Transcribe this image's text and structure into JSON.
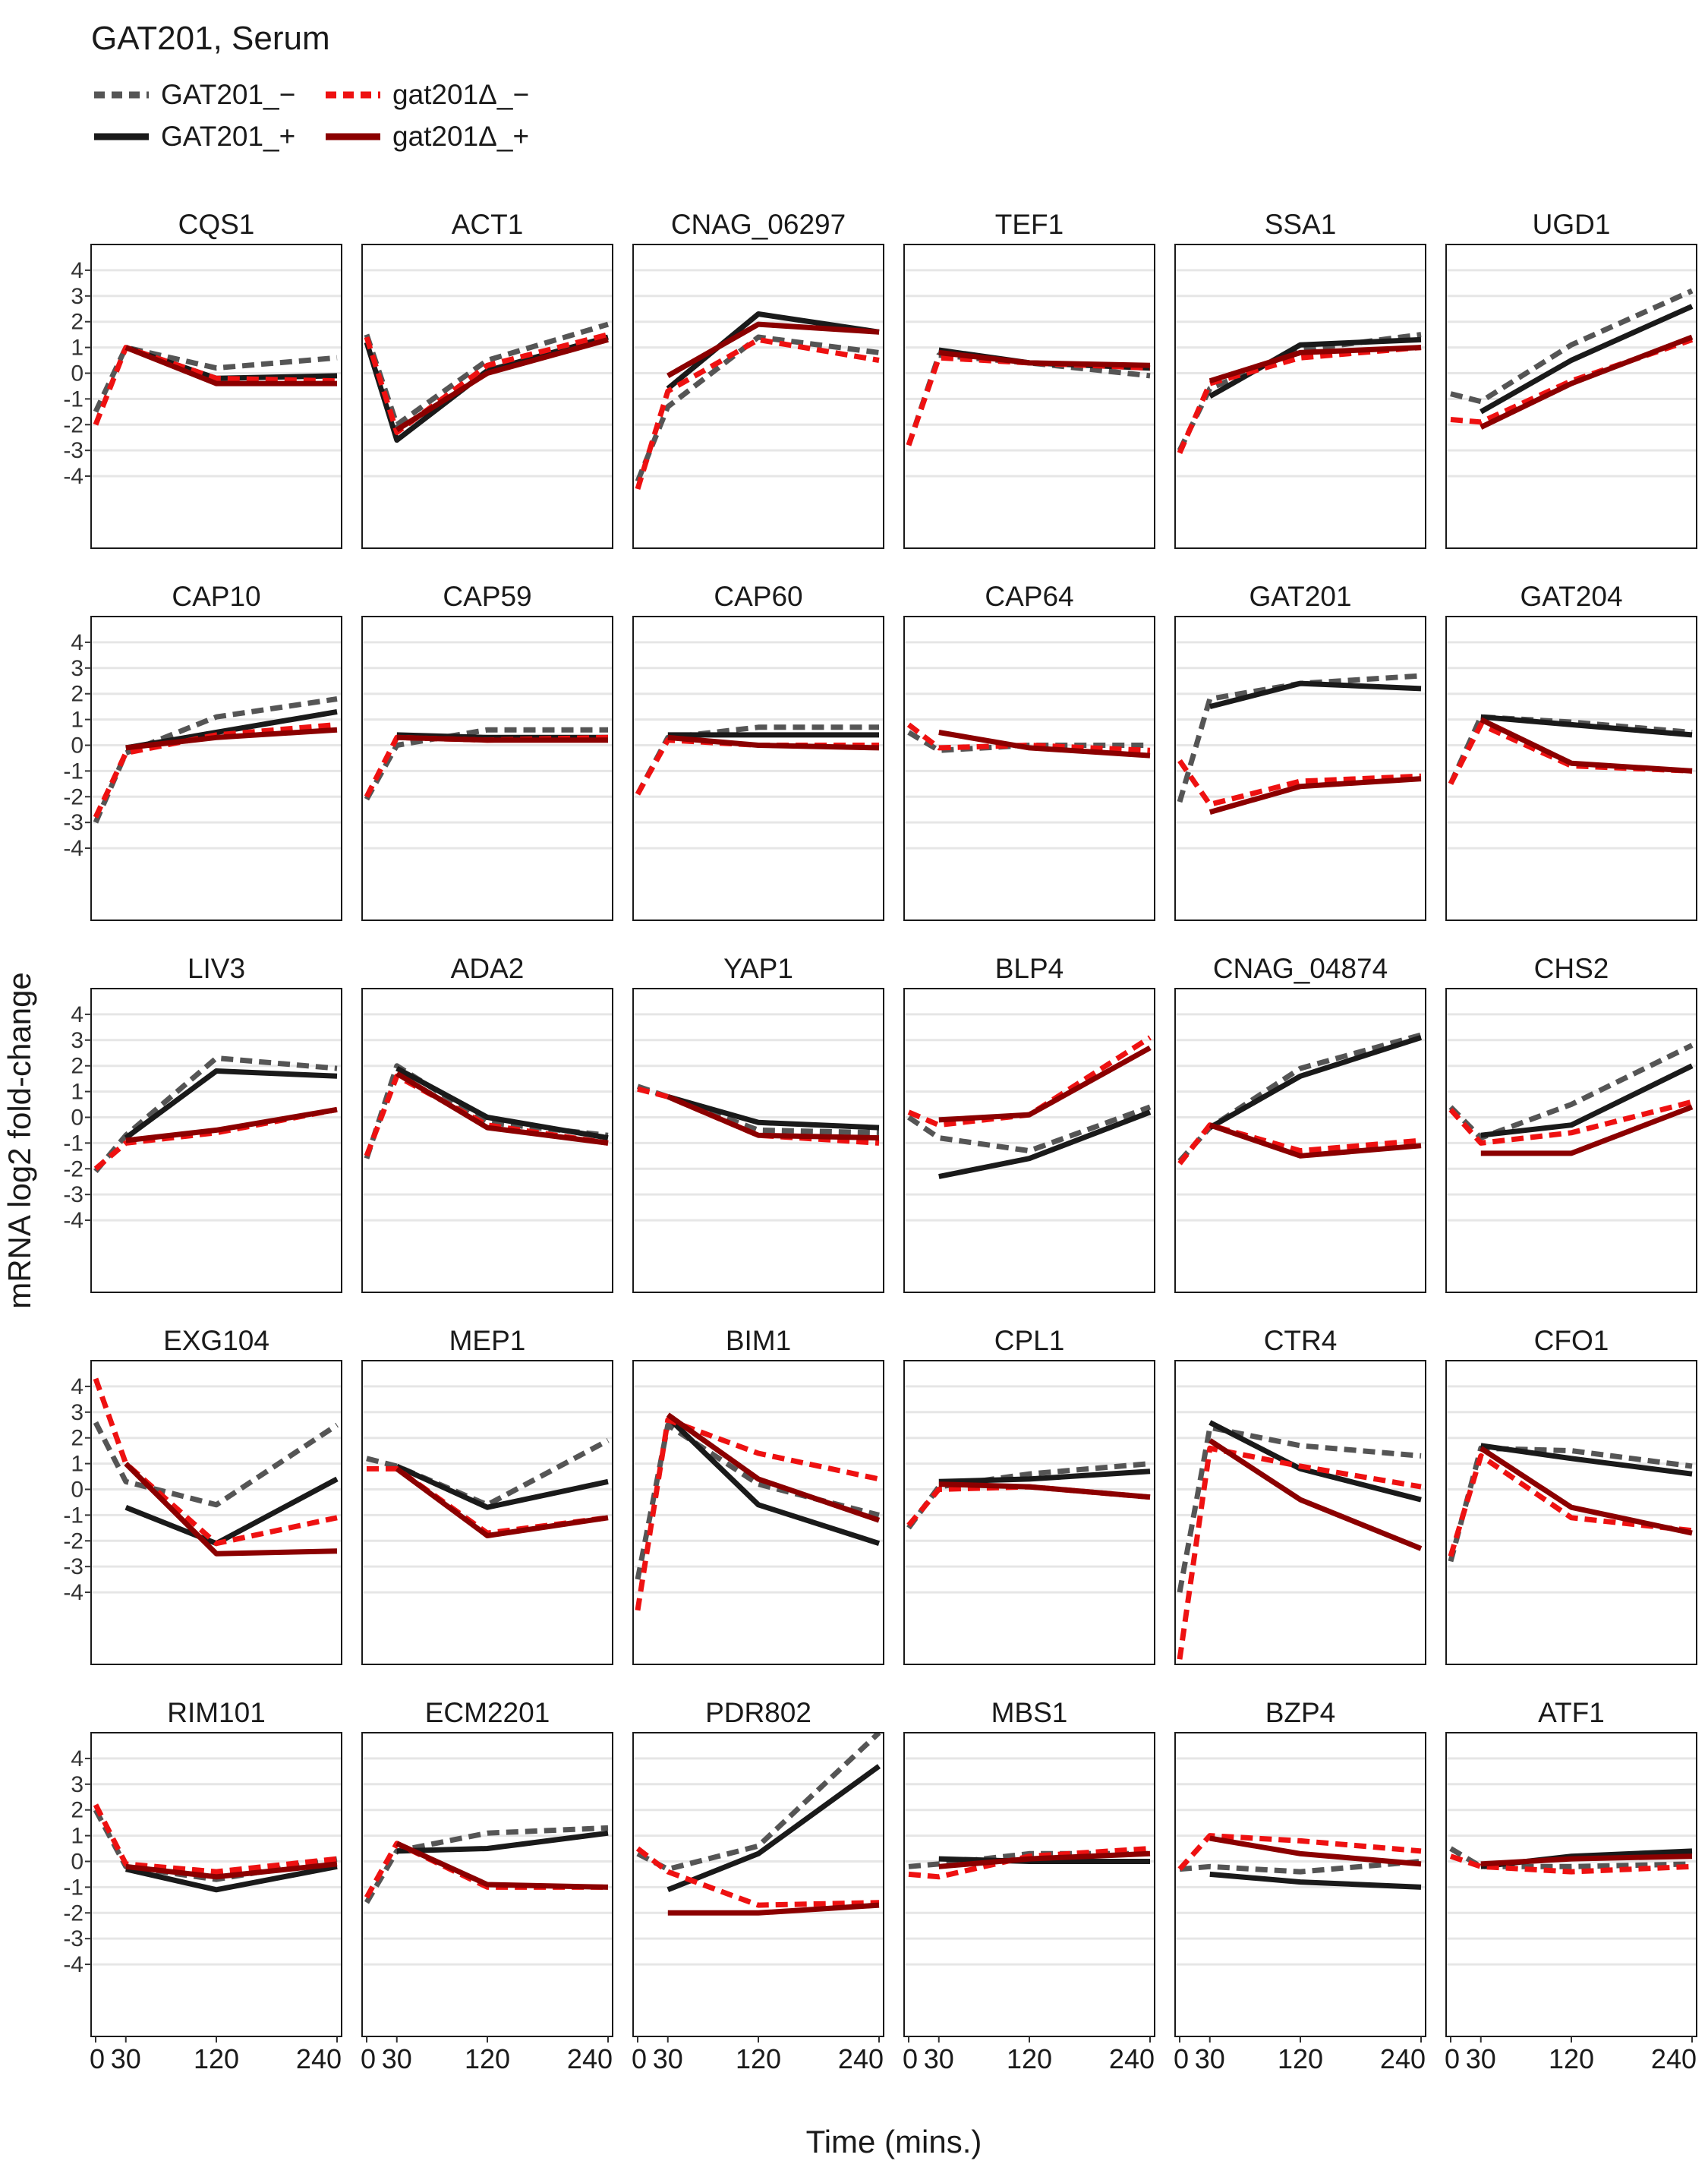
{
  "chart_data": {
    "type": "line",
    "title": "GAT201, Serum",
    "xlabel": "Time (mins.)",
    "ylabel": "mRNA log2 fold-change",
    "x": [
      0,
      30,
      120,
      240
    ],
    "x_ticks": [
      "0",
      "30",
      "120",
      "240"
    ],
    "y_ticks": [
      4,
      3,
      2,
      1,
      0,
      -1,
      -2,
      -3,
      -4
    ],
    "ylim": [
      -6.8,
      5.0
    ],
    "grid": "horizontal",
    "legend_position": "top-left",
    "legend": [
      {
        "key": "wt_minus",
        "label": "GAT201_−",
        "color": "#555555",
        "dash": true
      },
      {
        "key": "wt_plus",
        "label": "GAT201_+",
        "color": "#1a1a1a",
        "dash": false
      },
      {
        "key": "ko_minus",
        "label": "gat201Δ_−",
        "color": "#ee1111",
        "dash": true
      },
      {
        "key": "ko_plus",
        "label": "gat201Δ_+",
        "color": "#8b0000",
        "dash": false
      }
    ],
    "panels": [
      {
        "name": "CQS1",
        "series": {
          "wt_minus": [
            -1.5,
            1.0,
            0.2,
            0.6
          ],
          "wt_plus": [
            null,
            1.0,
            -0.2,
            -0.1
          ],
          "ko_minus": [
            -2.0,
            1.0,
            -0.2,
            -0.3
          ],
          "ko_plus": [
            null,
            1.0,
            -0.4,
            -0.4
          ]
        }
      },
      {
        "name": "ACT1",
        "series": {
          "wt_minus": [
            1.5,
            -2.0,
            0.5,
            1.9
          ],
          "wt_plus": [
            1.2,
            -2.6,
            0.1,
            1.4
          ],
          "ko_minus": [
            1.4,
            -2.3,
            0.3,
            1.5
          ],
          "ko_plus": [
            null,
            -2.2,
            0.0,
            1.3
          ]
        }
      },
      {
        "name": "CNAG_06297",
        "series": {
          "wt_minus": [
            -4.2,
            -1.3,
            1.4,
            0.8
          ],
          "wt_plus": [
            null,
            -0.6,
            2.3,
            1.6
          ],
          "ko_minus": [
            -4.5,
            -0.7,
            1.3,
            0.5
          ],
          "ko_plus": [
            null,
            -0.1,
            1.9,
            1.6
          ]
        }
      },
      {
        "name": "TEF1",
        "series": {
          "wt_minus": [
            -2.8,
            0.7,
            0.4,
            -0.1
          ],
          "wt_plus": [
            null,
            0.9,
            0.4,
            0.2
          ],
          "ko_minus": [
            -2.8,
            0.6,
            0.4,
            0.2
          ],
          "ko_plus": [
            null,
            0.8,
            0.4,
            0.3
          ]
        }
      },
      {
        "name": "SSA1",
        "series": {
          "wt_minus": [
            -3.0,
            -0.6,
            0.9,
            1.5
          ],
          "wt_plus": [
            null,
            -0.9,
            1.1,
            1.3
          ],
          "ko_minus": [
            -3.1,
            -0.4,
            0.6,
            1.0
          ],
          "ko_plus": [
            null,
            -0.3,
            0.8,
            1.0
          ]
        }
      },
      {
        "name": "UGD1",
        "series": {
          "wt_minus": [
            -0.8,
            -1.1,
            1.1,
            3.2
          ],
          "wt_plus": [
            null,
            -1.5,
            0.5,
            2.6
          ],
          "ko_minus": [
            -1.8,
            -1.9,
            -0.3,
            1.3
          ],
          "ko_plus": [
            null,
            -2.1,
            -0.4,
            1.4
          ]
        }
      },
      {
        "name": "CAP10",
        "series": {
          "wt_minus": [
            -3.0,
            -0.3,
            1.1,
            1.8
          ],
          "wt_plus": [
            null,
            -0.1,
            0.5,
            1.3
          ],
          "ko_minus": [
            -2.8,
            -0.3,
            0.4,
            0.8
          ],
          "ko_plus": [
            null,
            -0.1,
            0.3,
            0.6
          ]
        }
      },
      {
        "name": "CAP59",
        "series": {
          "wt_minus": [
            -2.1,
            0.0,
            0.6,
            0.6
          ],
          "wt_plus": [
            null,
            0.4,
            0.3,
            0.3
          ],
          "ko_minus": [
            -2.0,
            0.3,
            0.2,
            0.3
          ],
          "ko_plus": [
            null,
            0.3,
            0.2,
            0.2
          ]
        }
      },
      {
        "name": "CAP60",
        "series": {
          "wt_minus": [
            -1.9,
            0.3,
            0.7,
            0.7
          ],
          "wt_plus": [
            null,
            0.4,
            0.4,
            0.4
          ],
          "ko_minus": [
            -1.9,
            0.2,
            0.0,
            0.0
          ],
          "ko_plus": [
            null,
            0.3,
            0.0,
            -0.1
          ]
        }
      },
      {
        "name": "CAP64",
        "series": {
          "wt_minus": [
            0.5,
            -0.2,
            0.0,
            0.0
          ],
          "wt_plus": [
            null,
            null,
            null,
            null
          ],
          "ko_minus": [
            0.8,
            -0.1,
            0.0,
            -0.2
          ],
          "ko_plus": [
            null,
            0.5,
            -0.1,
            -0.4
          ]
        }
      },
      {
        "name": "GAT201",
        "series": {
          "wt_minus": [
            -2.2,
            1.8,
            2.4,
            2.7
          ],
          "wt_plus": [
            null,
            1.5,
            2.4,
            2.2
          ],
          "ko_minus": [
            -0.6,
            -2.3,
            -1.4,
            -1.2
          ],
          "ko_plus": [
            null,
            -2.6,
            -1.6,
            -1.3
          ]
        }
      },
      {
        "name": "GAT204",
        "series": {
          "wt_minus": [
            -1.5,
            1.1,
            0.9,
            0.5
          ],
          "wt_plus": [
            null,
            1.1,
            0.8,
            0.4
          ],
          "ko_minus": [
            -1.5,
            0.8,
            -0.8,
            -1.0
          ],
          "ko_plus": [
            null,
            1.0,
            -0.7,
            -1.0
          ]
        }
      },
      {
        "name": "LIV3",
        "series": {
          "wt_minus": [
            -2.1,
            -0.7,
            2.3,
            1.9
          ],
          "wt_plus": [
            null,
            -0.8,
            1.8,
            1.6
          ],
          "ko_minus": [
            -2.0,
            -1.0,
            -0.6,
            0.3
          ],
          "ko_plus": [
            null,
            -0.9,
            -0.5,
            0.3
          ]
        }
      },
      {
        "name": "ADA2",
        "series": {
          "wt_minus": [
            -1.6,
            2.0,
            -0.2,
            -0.7
          ],
          "wt_plus": [
            null,
            1.9,
            0.0,
            -0.8
          ],
          "ko_minus": [
            -1.5,
            1.6,
            -0.3,
            -1.0
          ],
          "ko_plus": [
            null,
            1.7,
            -0.4,
            -1.0
          ]
        }
      },
      {
        "name": "YAP1",
        "series": {
          "wt_minus": [
            1.2,
            0.8,
            -0.5,
            -0.6
          ],
          "wt_plus": [
            null,
            0.8,
            -0.2,
            -0.4
          ],
          "ko_minus": [
            1.1,
            0.8,
            -0.7,
            -1.0
          ],
          "ko_plus": [
            null,
            0.8,
            -0.7,
            -0.8
          ]
        }
      },
      {
        "name": "BLP4",
        "series": {
          "wt_minus": [
            0.0,
            -0.8,
            -1.3,
            0.4
          ],
          "wt_plus": [
            null,
            -2.3,
            -1.6,
            0.2
          ],
          "ko_minus": [
            0.2,
            -0.3,
            0.1,
            3.1
          ],
          "ko_plus": [
            null,
            -0.1,
            0.1,
            2.7
          ]
        }
      },
      {
        "name": "CNAG_04874",
        "series": {
          "wt_minus": [
            -1.7,
            -0.4,
            1.9,
            3.2
          ],
          "wt_plus": [
            null,
            -0.4,
            1.6,
            3.1
          ],
          "ko_minus": [
            -1.8,
            -0.3,
            -1.3,
            -0.9
          ],
          "ko_plus": [
            null,
            -0.3,
            -1.5,
            -1.1
          ]
        }
      },
      {
        "name": "CHS2",
        "series": {
          "wt_minus": [
            0.4,
            -0.8,
            0.5,
            2.8
          ],
          "wt_plus": [
            null,
            -0.7,
            -0.3,
            2.0
          ],
          "ko_minus": [
            0.3,
            -1.0,
            -0.6,
            0.6
          ],
          "ko_plus": [
            null,
            -1.4,
            -1.4,
            0.4
          ]
        }
      },
      {
        "name": "EXG104",
        "series": {
          "wt_minus": [
            2.6,
            0.3,
            -0.6,
            2.5
          ],
          "wt_plus": [
            null,
            -0.7,
            -2.1,
            0.4
          ],
          "ko_minus": [
            4.3,
            1.0,
            -2.1,
            -1.1
          ],
          "ko_plus": [
            null,
            1.0,
            -2.5,
            -2.4
          ]
        }
      },
      {
        "name": "MEP1",
        "series": {
          "wt_minus": [
            1.2,
            0.9,
            -0.6,
            1.9
          ],
          "wt_plus": [
            null,
            0.9,
            -0.7,
            0.3
          ],
          "ko_minus": [
            0.8,
            0.8,
            -1.7,
            -1.1
          ],
          "ko_plus": [
            null,
            0.8,
            -1.8,
            -1.1
          ]
        }
      },
      {
        "name": "BIM1",
        "series": {
          "wt_minus": [
            -3.5,
            2.5,
            0.2,
            -1.0
          ],
          "wt_plus": [
            null,
            2.8,
            -0.6,
            -2.1
          ],
          "ko_minus": [
            -4.7,
            2.7,
            1.4,
            0.4
          ],
          "ko_plus": [
            null,
            2.9,
            0.4,
            -1.2
          ]
        }
      },
      {
        "name": "CPL1",
        "series": {
          "wt_minus": [
            -1.5,
            0.1,
            0.6,
            1.0
          ],
          "wt_plus": [
            null,
            0.3,
            0.4,
            0.7
          ],
          "ko_minus": [
            -1.4,
            0.0,
            0.1,
            -0.3
          ],
          "ko_plus": [
            null,
            0.2,
            0.1,
            -0.3
          ]
        }
      },
      {
        "name": "CTR4",
        "series": {
          "wt_minus": [
            -4.0,
            2.4,
            1.7,
            1.3
          ],
          "wt_plus": [
            null,
            2.6,
            0.8,
            -0.4
          ],
          "ko_minus": [
            -6.6,
            1.6,
            0.9,
            0.1
          ],
          "ko_plus": [
            null,
            1.9,
            -0.4,
            -2.3
          ]
        }
      },
      {
        "name": "CFO1",
        "series": {
          "wt_minus": [
            -2.8,
            1.6,
            1.5,
            0.9
          ],
          "wt_plus": [
            null,
            1.7,
            1.2,
            0.6
          ],
          "ko_minus": [
            -2.6,
            1.3,
            -1.1,
            -1.6
          ],
          "ko_plus": [
            null,
            1.6,
            -0.7,
            -1.7
          ]
        }
      },
      {
        "name": "RIM101",
        "series": {
          "wt_minus": [
            2.0,
            -0.2,
            -0.7,
            0.1
          ],
          "wt_plus": [
            null,
            -0.3,
            -1.1,
            -0.2
          ],
          "ko_minus": [
            2.2,
            -0.1,
            -0.4,
            0.1
          ],
          "ko_plus": [
            null,
            -0.2,
            -0.6,
            -0.1
          ]
        }
      },
      {
        "name": "ECM2201",
        "series": {
          "wt_minus": [
            -1.6,
            0.4,
            1.1,
            1.3
          ],
          "wt_plus": [
            null,
            0.4,
            0.5,
            1.1
          ],
          "ko_minus": [
            -1.4,
            0.7,
            -1.0,
            -1.0
          ],
          "ko_plus": [
            null,
            0.7,
            -0.9,
            -1.0
          ]
        }
      },
      {
        "name": "PDR802",
        "series": {
          "wt_minus": [
            0.3,
            -0.3,
            0.6,
            5.0
          ],
          "wt_plus": [
            null,
            -1.1,
            0.3,
            3.7
          ],
          "ko_minus": [
            0.5,
            -0.4,
            -1.7,
            -1.6
          ],
          "ko_plus": [
            null,
            -2.0,
            -2.0,
            -1.7
          ]
        }
      },
      {
        "name": "MBS1",
        "series": {
          "wt_minus": [
            -0.2,
            -0.1,
            0.3,
            0.3
          ],
          "wt_plus": [
            null,
            0.1,
            0.0,
            0.0
          ],
          "ko_minus": [
            -0.5,
            -0.6,
            0.2,
            0.5
          ],
          "ko_plus": [
            null,
            -0.2,
            0.1,
            0.3
          ]
        }
      },
      {
        "name": "BZP4",
        "series": {
          "wt_minus": [
            -0.3,
            -0.2,
            -0.4,
            0.0
          ],
          "wt_plus": [
            null,
            -0.5,
            -0.8,
            -1.0
          ],
          "ko_minus": [
            -0.3,
            1.0,
            0.8,
            0.4
          ],
          "ko_plus": [
            null,
            0.9,
            0.3,
            -0.1
          ]
        }
      },
      {
        "name": "ATF1",
        "series": {
          "wt_minus": [
            0.5,
            -0.2,
            -0.2,
            -0.1
          ],
          "wt_plus": [
            null,
            -0.2,
            0.2,
            0.4
          ],
          "ko_minus": [
            0.2,
            -0.2,
            -0.4,
            -0.2
          ],
          "ko_plus": [
            null,
            -0.1,
            0.1,
            0.2
          ]
        }
      }
    ]
  }
}
